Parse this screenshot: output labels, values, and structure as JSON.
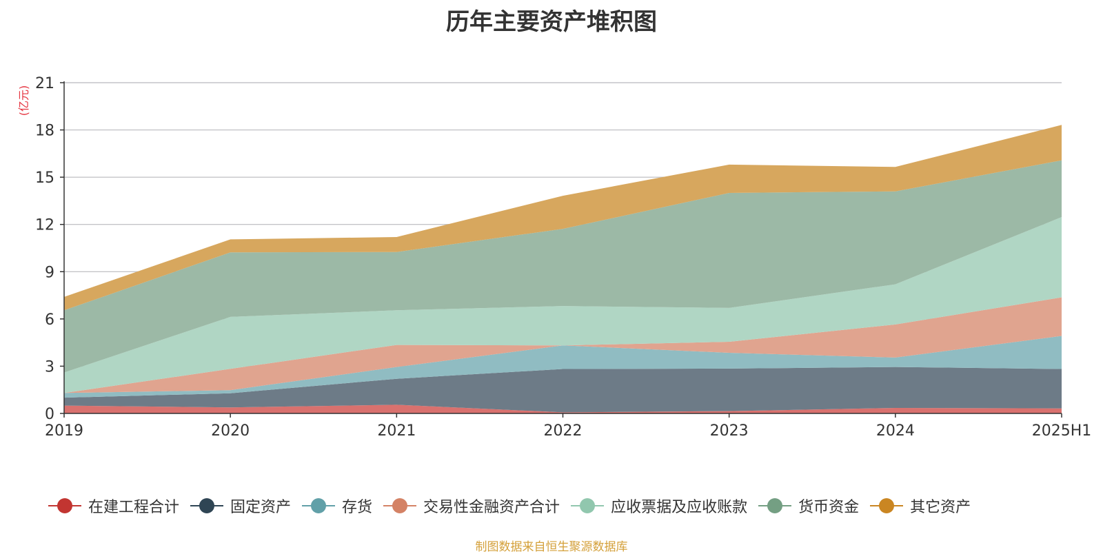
{
  "chart_data": {
    "type": "area",
    "stacked": true,
    "title": "历年主要资产堆积图",
    "ylabel": "(亿元)",
    "ylabel_color": "#e5323e",
    "categories": [
      "2019",
      "2020",
      "2021",
      "2022",
      "2023",
      "2024",
      "2025H1"
    ],
    "ylim": [
      0,
      21
    ],
    "yticks": [
      0,
      3,
      6,
      9,
      12,
      15,
      18,
      21
    ],
    "grid": true,
    "legend_position": "bottom",
    "series": [
      {
        "name": "在建工程合计",
        "color": "#c23531",
        "fill": "#d9716e",
        "values": [
          0.5,
          0.38,
          0.55,
          0.07,
          0.15,
          0.35,
          0.32
        ]
      },
      {
        "name": "固定资产",
        "color": "#2f4554",
        "fill": "#6d7b87",
        "values": [
          0.5,
          0.9,
          1.65,
          2.75,
          2.7,
          2.6,
          2.5
        ]
      },
      {
        "name": "存货",
        "color": "#61a0a8",
        "fill": "#90bcc2",
        "values": [
          0.3,
          0.2,
          0.75,
          1.5,
          1.0,
          0.6,
          2.1
        ]
      },
      {
        "name": "交易性金融资产合计",
        "color": "#d48265",
        "fill": "#e0a48f",
        "values": [
          0.0,
          1.35,
          1.4,
          0.0,
          0.7,
          2.1,
          2.45
        ]
      },
      {
        "name": "应收票据及应收账款",
        "color": "#91c7ae",
        "fill": "#b0d6c4",
        "values": [
          1.3,
          3.3,
          2.2,
          2.5,
          2.15,
          2.55,
          5.1
        ]
      },
      {
        "name": "货币资金",
        "color": "#749f83",
        "fill": "#9cb9a6",
        "values": [
          3.95,
          4.1,
          3.7,
          4.9,
          7.3,
          5.9,
          3.6
        ]
      },
      {
        "name": "其它资产",
        "color": "#ca8622",
        "fill": "#d7a75e",
        "values": [
          0.85,
          0.82,
          0.95,
          2.1,
          1.8,
          1.55,
          2.25
        ]
      }
    ]
  },
  "footer": {
    "source_text": "制图数据来自恒生聚源数据库"
  }
}
